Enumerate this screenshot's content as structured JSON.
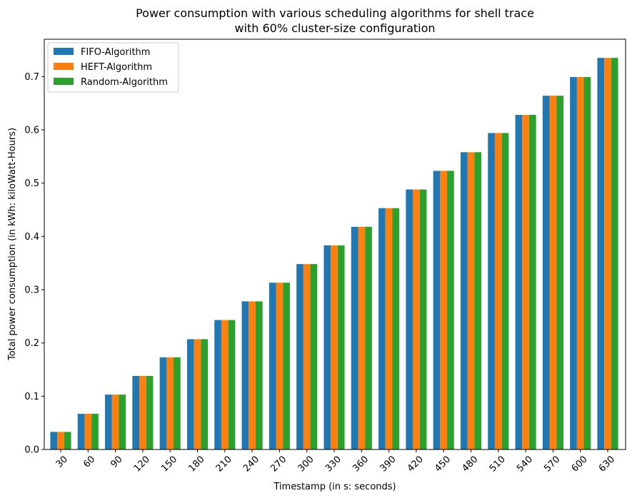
{
  "chart_data": {
    "type": "bar",
    "title_line1": "Power consumption with various scheduling algorithms for shell trace",
    "title_line2": "with 60% cluster-size configuration",
    "xlabel": "Timestamp (in s: seconds)",
    "ylabel": "Total power consumption (in kWh: kiloWatt-Hours)",
    "ylim": [
      0,
      0.77
    ],
    "yticks": [
      "0.0",
      "0.1",
      "0.2",
      "0.3",
      "0.4",
      "0.5",
      "0.6",
      "0.7"
    ],
    "categories": [
      "30",
      "60",
      "90",
      "120",
      "150",
      "180",
      "210",
      "240",
      "270",
      "300",
      "330",
      "360",
      "390",
      "420",
      "450",
      "480",
      "510",
      "540",
      "570",
      "600",
      "630"
    ],
    "grid": false,
    "legend_position": "top-left",
    "series": [
      {
        "name": "FIFO-Algorithm",
        "color": "#1f77b4",
        "values": [
          0.033,
          0.067,
          0.103,
          0.138,
          0.173,
          0.207,
          0.243,
          0.278,
          0.313,
          0.348,
          0.383,
          0.418,
          0.453,
          0.488,
          0.523,
          0.558,
          0.594,
          0.628,
          0.664,
          0.699,
          0.735
        ]
      },
      {
        "name": "HEFT-Algorithm",
        "color": "#ff7f0e",
        "values": [
          0.033,
          0.067,
          0.103,
          0.138,
          0.173,
          0.207,
          0.243,
          0.278,
          0.313,
          0.348,
          0.383,
          0.418,
          0.453,
          0.488,
          0.523,
          0.558,
          0.594,
          0.628,
          0.664,
          0.699,
          0.735
        ]
      },
      {
        "name": "Random-Algorithm",
        "color": "#2ca02c",
        "values": [
          0.033,
          0.067,
          0.103,
          0.138,
          0.173,
          0.207,
          0.243,
          0.278,
          0.313,
          0.348,
          0.383,
          0.418,
          0.453,
          0.488,
          0.523,
          0.558,
          0.594,
          0.628,
          0.664,
          0.699,
          0.735
        ]
      }
    ]
  }
}
